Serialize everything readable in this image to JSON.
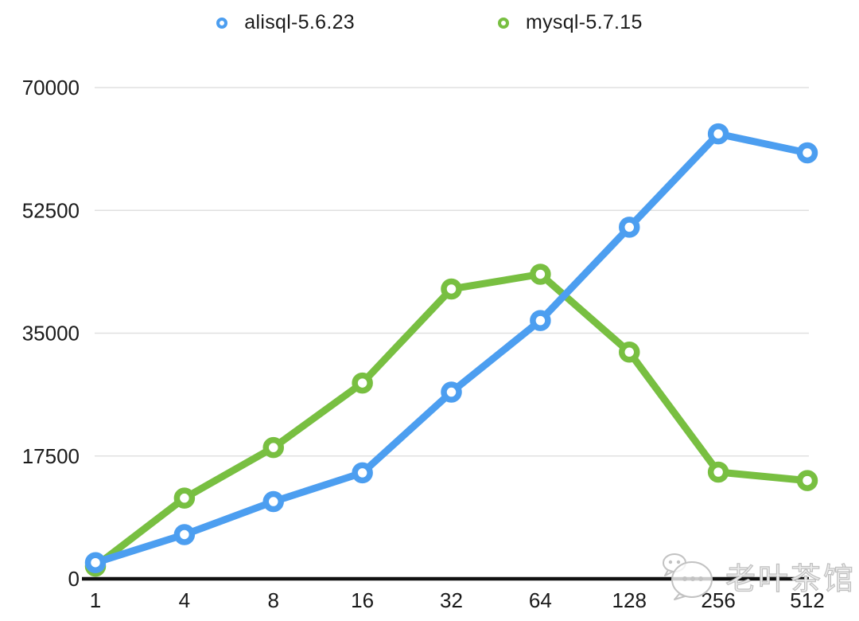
{
  "legend": {
    "items": [
      {
        "label": "alisql-5.6.23",
        "color": "#4c9ef0"
      },
      {
        "label": "mysql-5.7.15",
        "color": "#78bf41"
      }
    ]
  },
  "watermark": {
    "text": "老叶茶馆",
    "icon": "wechat-chat-bubbles-icon"
  },
  "chart_data": {
    "type": "line",
    "title": "",
    "xlabel": "",
    "ylabel": "",
    "categories": [
      "1",
      "4",
      "8",
      "16",
      "32",
      "64",
      "128",
      "256",
      "512"
    ],
    "series": [
      {
        "name": "alisql-5.6.23",
        "color": "#4c9ef0",
        "values": [
          2300,
          6300,
          11000,
          15100,
          26600,
          36800,
          50100,
          63400,
          60700
        ]
      },
      {
        "name": "mysql-5.7.15",
        "color": "#78bf41",
        "values": [
          1800,
          11500,
          18700,
          27900,
          41300,
          43400,
          32300,
          15200,
          14000
        ]
      }
    ],
    "ylim": [
      0,
      70000
    ],
    "yticks": [
      0,
      17500,
      35000,
      52500,
      70000
    ],
    "grid": "horizontal",
    "legend_position": "top",
    "marker_style": "open-circle"
  }
}
